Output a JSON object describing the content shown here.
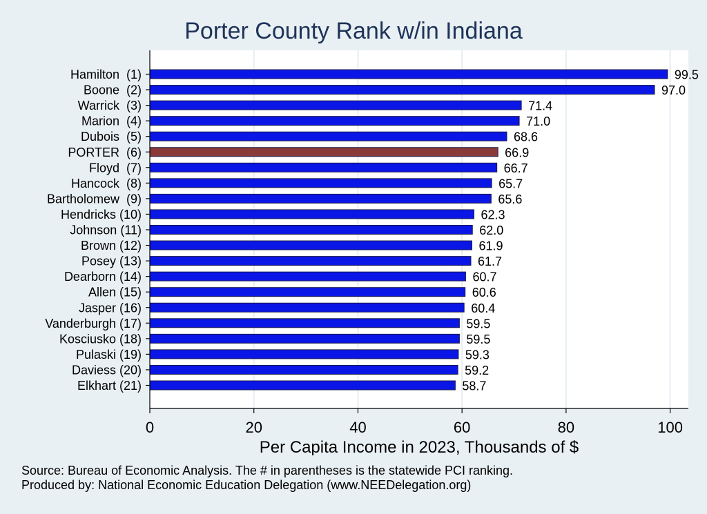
{
  "chart_data": {
    "type": "bar",
    "orientation": "horizontal",
    "title": "Porter County Rank w/in Indiana",
    "xlabel": "Per Capita Income in 2023, Thousands of $",
    "categories": [
      "Hamilton  (1)",
      "Boone  (2)",
      "Warrick  (3)",
      "Marion  (4)",
      "Dubois  (5)",
      "PORTER  (6)",
      "Floyd  (7)",
      "Hancock  (8)",
      "Bartholomew  (9)",
      "Hendricks (10)",
      "Johnson (11)",
      "Brown (12)",
      "Posey (13)",
      "Dearborn (14)",
      "Allen (15)",
      "Jasper (16)",
      "Vanderburgh (17)",
      "Kosciusko (18)",
      "Pulaski (19)",
      "Daviess (20)",
      "Elkhart (21)"
    ],
    "values": [
      99.5,
      97.0,
      71.4,
      71.0,
      68.6,
      66.9,
      66.7,
      65.7,
      65.6,
      62.3,
      62.0,
      61.9,
      61.7,
      60.7,
      60.6,
      60.4,
      59.5,
      59.5,
      59.3,
      59.2,
      58.7
    ],
    "value_labels": [
      "99.5",
      "97.0",
      "71.4",
      "71.0",
      "68.6",
      "66.9",
      "66.7",
      "65.7",
      "65.6",
      "62.3",
      "62.0",
      "61.9",
      "61.7",
      "60.7",
      "60.6",
      "60.4",
      "59.5",
      "59.5",
      "59.3",
      "59.2",
      "58.7"
    ],
    "highlight_index": 5,
    "xticks": [
      0,
      20,
      40,
      60,
      80,
      100
    ],
    "xtick_labels": [
      "0",
      "20",
      "40",
      "60",
      "80",
      "100"
    ],
    "xlim": [
      0,
      103.5
    ],
    "grid": "vertical",
    "colors": {
      "bar": "#0a16e6",
      "highlight": "#8b3a3a",
      "bar_edge": "#1a1a4a",
      "title": "#1e3359",
      "background": "#e9f0f3",
      "plot_background": "#ffffff",
      "grid": "#e6eef2"
    }
  },
  "notes": {
    "source": "Source: Bureau of Economic Analysis. The # in parentheses is the statewide PCI ranking.",
    "produced_by": "Produced by: National Economic Education Delegation (www.NEEDelegation.org)"
  }
}
